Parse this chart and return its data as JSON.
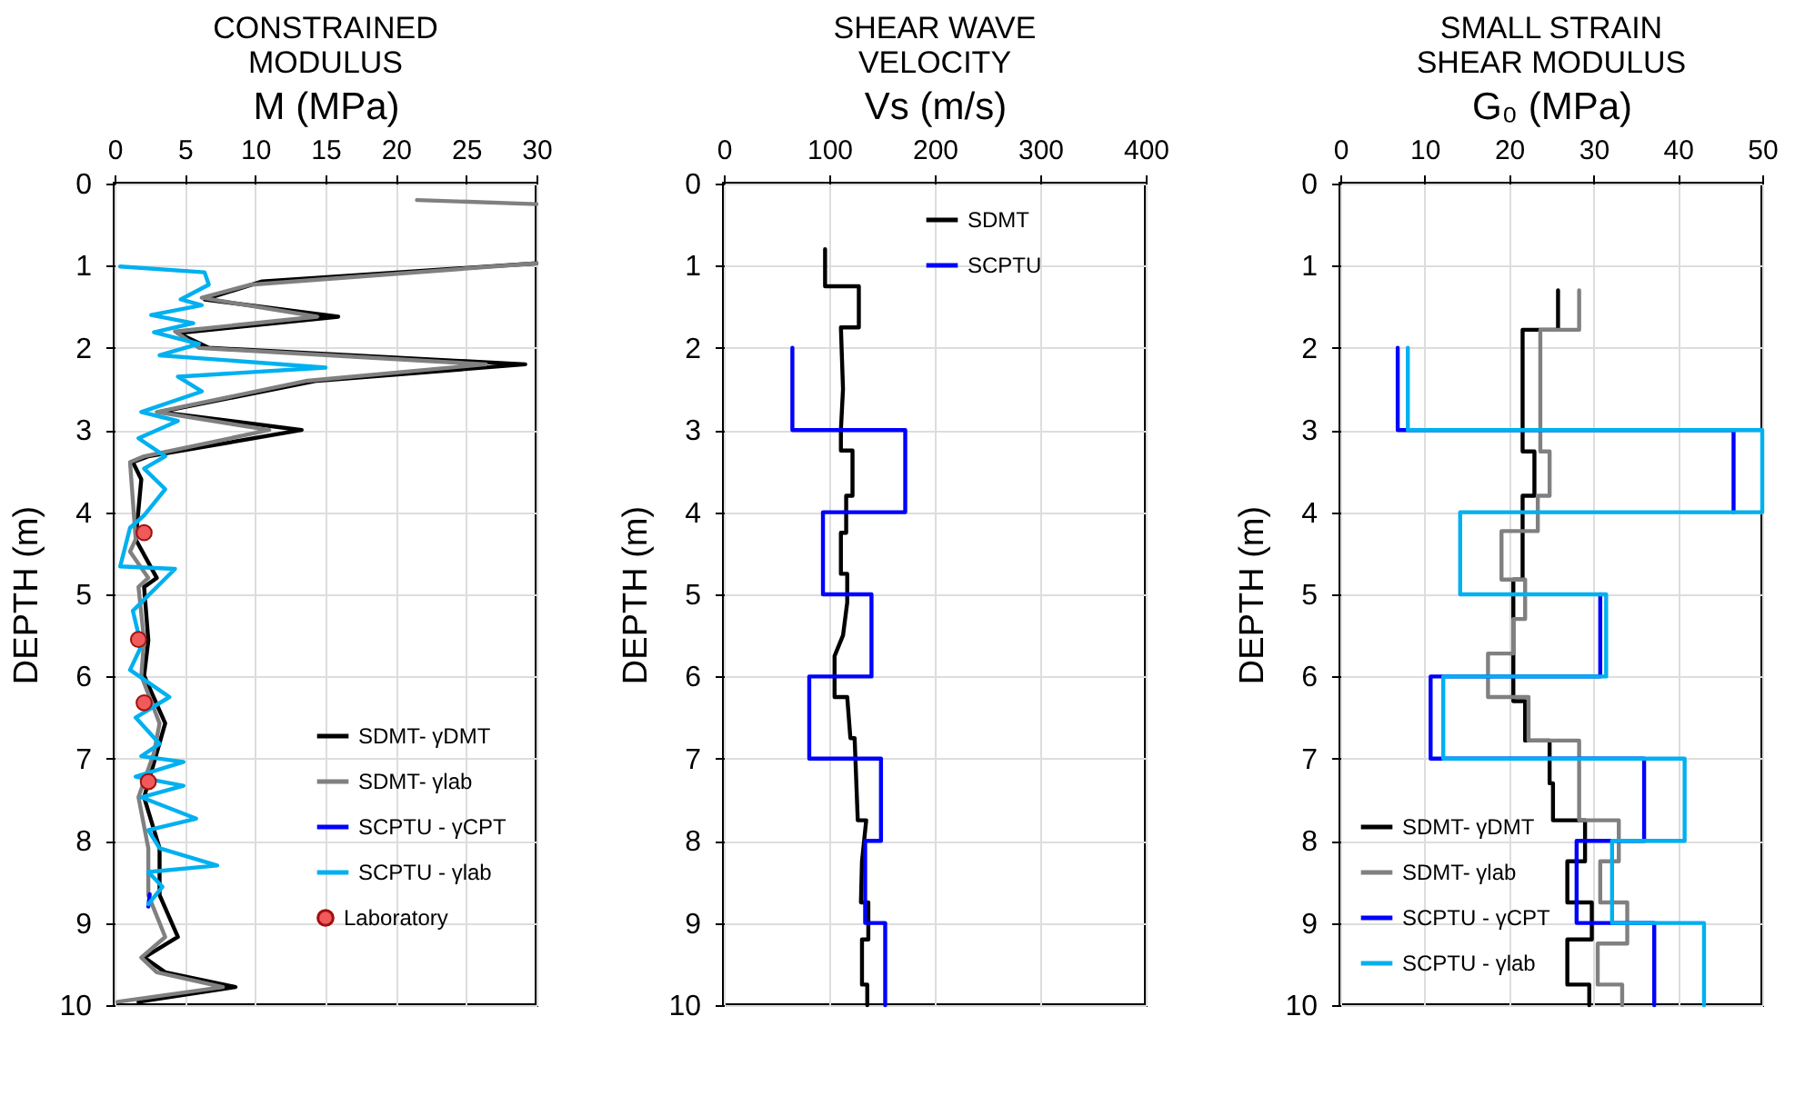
{
  "chart_data": [
    {
      "type": "line",
      "title": "CONSTRAINED\nMODULUS",
      "xlabel": "M (MPa)",
      "ylabel": "DEPTH (m)",
      "xlim": [
        0,
        30
      ],
      "xticks": [
        0,
        5,
        10,
        15,
        20,
        25,
        30
      ],
      "ylim": [
        10,
        0
      ],
      "yticks": [
        0,
        1,
        2,
        3,
        4,
        5,
        6,
        7,
        8,
        9,
        10
      ],
      "grid": true,
      "legend": "bottom right",
      "line_style": "solid",
      "series": [
        {
          "name": "SDMT- γDMT",
          "color": "#000000",
          "x": [
            30,
            10.5,
            6.4,
            15.9,
            4.5,
            6.7,
            29.2,
            14.4,
            3.2,
            13.3,
            2.4,
            1.3,
            1.9,
            1.5,
            3.0,
            2.1,
            2.4,
            2.1,
            3.6,
            3.0,
            2.1,
            3.2,
            3.2,
            4.5,
            2.1,
            3.6,
            8.6,
            1.7
          ],
          "values": [
            0.97,
            1.19,
            1.41,
            1.62,
            1.82,
            2.0,
            2.2,
            2.4,
            2.78,
            3.0,
            3.32,
            3.39,
            3.6,
            4.33,
            4.8,
            4.91,
            5.56,
            5.99,
            6.57,
            6.93,
            7.47,
            8.09,
            8.66,
            9.17,
            9.42,
            9.6,
            9.78,
            9.96
          ]
        },
        {
          "color": "#808080",
          "x": [
            21.5,
            30
          ],
          "values": [
            0.2,
            0.25
          ]
        },
        {
          "name": "SDMT- γlab",
          "color": "#808080",
          "x": [
            30,
            9.7,
            6.2,
            14.4,
            4.3,
            6.0,
            26.4,
            13.7,
            3.0,
            11.0,
            2.1,
            1.1,
            1.5,
            1.1,
            2.4,
            1.7,
            2.1,
            1.9,
            3.2,
            2.8,
            1.7,
            2.4,
            2.4,
            3.6,
            1.9,
            3.0,
            7.7,
            0.2
          ],
          "values": [
            0.97,
            1.23,
            1.39,
            1.62,
            1.8,
            2.0,
            2.2,
            2.4,
            2.78,
            3.0,
            3.32,
            3.39,
            4.33,
            4.48,
            4.8,
            4.91,
            5.56,
            5.99,
            6.57,
            6.93,
            7.47,
            8.09,
            8.66,
            9.17,
            9.42,
            9.6,
            9.78,
            9.96
          ]
        },
        {
          "name": "SCPTU - γCPT",
          "color": "#0000ff",
          "x": [
            2.5,
            2.4
          ],
          "values": [
            8.65,
            8.8
          ]
        },
        {
          "name": "SCPTU - γlab",
          "color": "#00b0f0",
          "x": [
            0.4,
            6.4,
            6.7,
            4.7,
            6.2,
            2.6,
            5.6,
            2.8,
            6.0,
            3.2,
            15.0,
            4.5,
            6.2,
            1.9,
            4.5,
            1.7,
            3.6,
            2.1,
            3.6,
            2.1,
            1.1,
            0.4,
            4.3,
            1.3,
            1.9,
            1.1,
            3.9,
            1.5,
            3.2,
            1.9,
            4.9,
            1.5,
            4.9,
            1.9,
            5.8,
            2.4,
            3.2,
            7.3,
            2.4,
            3.4,
            2.4
          ],
          "values": [
            1.01,
            1.08,
            1.23,
            1.41,
            1.48,
            1.6,
            1.7,
            1.81,
            1.95,
            2.09,
            2.24,
            2.35,
            2.53,
            2.78,
            2.89,
            3.1,
            3.32,
            3.47,
            3.72,
            4.04,
            4.19,
            4.66,
            4.69,
            5.2,
            5.63,
            5.92,
            6.25,
            6.5,
            6.82,
            6.97,
            7.04,
            7.22,
            7.33,
            7.47,
            7.73,
            7.87,
            8.09,
            8.3,
            8.38,
            8.56,
            8.77
          ]
        },
        {
          "name": "Laboratory",
          "type": "scatter",
          "marker": "circle",
          "color": "#f05a5a",
          "x": [
            2.1,
            1.7,
            2.1,
            2.4
          ],
          "values": [
            4.25,
            5.55,
            6.32,
            7.28
          ]
        }
      ]
    },
    {
      "type": "line",
      "title": "SHEAR WAVE\nVELOCITY",
      "xlabel": "Vs (m/s)",
      "ylabel": "DEPTH (m)",
      "xlim": [
        0,
        400
      ],
      "xticks": [
        0,
        100,
        200,
        300,
        400
      ],
      "ylim": [
        10,
        0
      ],
      "yticks": [
        0,
        1,
        2,
        3,
        4,
        5,
        6,
        7,
        8,
        9,
        10
      ],
      "grid": true,
      "legend": "top right",
      "line_style": "solid",
      "series": [
        {
          "name": "SDMT",
          "color": "#000000",
          "x": [
            96,
            96,
            128,
            128,
            111,
            113,
            111,
            111,
            122,
            122,
            116,
            116,
            111,
            111,
            117,
            117,
            113,
            105,
            105,
            117,
            120,
            124,
            127,
            135,
            131,
            130,
            137,
            137,
            131,
            131,
            136,
            136
          ],
          "values": [
            0.8,
            1.25,
            1.25,
            1.75,
            1.75,
            2.5,
            3.0,
            3.25,
            3.25,
            3.8,
            3.8,
            4.25,
            4.25,
            4.75,
            4.75,
            5.1,
            5.5,
            5.75,
            6.25,
            6.25,
            6.75,
            6.75,
            7.75,
            7.75,
            8.25,
            8.75,
            8.75,
            9.2,
            9.2,
            9.75,
            9.75,
            10
          ]
        },
        {
          "name": "SCPTU",
          "color": "#0000ff",
          "x": [
            65,
            65,
            172,
            172,
            94,
            94,
            140,
            140,
            81,
            81,
            149,
            149,
            134,
            134,
            153,
            153
          ],
          "values": [
            2,
            3,
            3,
            4,
            4,
            5,
            5,
            6,
            6,
            7,
            7,
            8,
            8,
            9,
            9,
            10
          ]
        }
      ]
    },
    {
      "type": "line",
      "title": "SMALL STRAIN\nSHEAR MODULUS",
      "xlabel": "G₀ (MPa)",
      "ylabel": "DEPTH (m)",
      "xlim": [
        0,
        50
      ],
      "xticks": [
        0,
        10,
        20,
        30,
        40,
        50
      ],
      "ylim": [
        10,
        0
      ],
      "yticks": [
        0,
        1,
        2,
        3,
        4,
        5,
        6,
        7,
        8,
        9,
        10
      ],
      "grid": true,
      "legend": "bottom left",
      "line_style": "solid",
      "series": [
        {
          "name": "SDMT- γDMT",
          "color": "#000000",
          "x": [
            25.8,
            25.8,
            21.6,
            21.6,
            23.0,
            23.0,
            21.6,
            21.6,
            20.5,
            20.5,
            21.9,
            21.9,
            24.8,
            24.8,
            25.2,
            25.2,
            29.0,
            29.0,
            26.9,
            26.9,
            29.8,
            29.8,
            26.9,
            26.9,
            29.5,
            29.5
          ],
          "values": [
            1.3,
            1.78,
            1.78,
            3.26,
            3.26,
            3.8,
            3.8,
            4.82,
            4.82,
            6.3,
            6.3,
            6.78,
            6.78,
            7.3,
            7.3,
            7.75,
            7.75,
            8.25,
            8.25,
            8.75,
            8.75,
            9.2,
            9.2,
            9.75,
            9.75,
            10
          ]
        },
        {
          "name": "SDMT- γlab",
          "color": "#808080",
          "x": [
            28.3,
            28.3,
            23.7,
            23.7,
            24.8,
            24.8,
            23.4,
            23.4,
            19.1,
            19.1,
            21.9,
            21.9,
            20.5,
            20.5,
            17.5,
            17.5,
            22.3,
            22.3,
            28.3,
            28.3,
            33.0,
            33.0,
            30.8,
            30.8,
            34.0,
            34.0,
            30.5,
            30.5,
            33.4,
            33.4
          ],
          "values": [
            1.3,
            1.78,
            1.78,
            3.26,
            3.26,
            3.8,
            3.8,
            4.23,
            4.23,
            4.82,
            4.82,
            5.3,
            5.3,
            5.72,
            5.72,
            6.25,
            6.25,
            6.78,
            6.78,
            7.75,
            7.75,
            8.25,
            8.25,
            8.75,
            8.75,
            9.25,
            9.25,
            9.75,
            9.75,
            10
          ]
        },
        {
          "name": "SCPTU - γCPT",
          "color": "#0000ff",
          "x": [
            6.8,
            6.8,
            46.6,
            46.6,
            null,
            null,
            30.8,
            30.8,
            10.7,
            10.7,
            36.0,
            36.0,
            28.0,
            28.0,
            37.2,
            37.2
          ],
          "values": [
            2,
            3,
            3,
            4,
            null,
            null,
            5,
            6,
            6,
            7,
            7,
            8,
            8,
            9,
            9,
            10
          ]
        },
        {
          "name": "SCPTU - γlab",
          "color": "#00b0f0",
          "x": [
            8.0,
            8.0,
            50,
            50,
            14.2,
            14.2,
            31.5,
            31.5,
            12.2,
            12.2,
            40.8,
            40.8,
            32.2,
            32.2,
            43.1,
            43.1
          ],
          "values": [
            2,
            3,
            3,
            4,
            4,
            5,
            5,
            6,
            6,
            7,
            7,
            8,
            8,
            9,
            9,
            10
          ]
        }
      ]
    }
  ]
}
